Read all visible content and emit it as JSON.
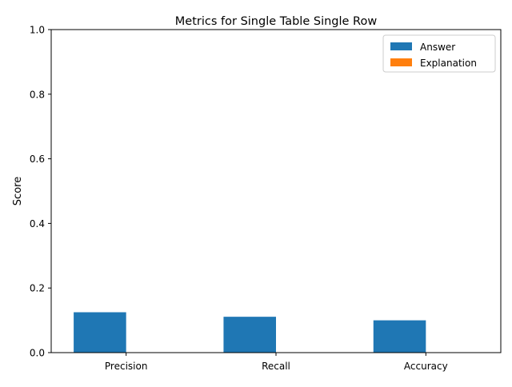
{
  "chart_data": {
    "type": "bar",
    "title": "Metrics for Single Table Single Row",
    "xlabel": "",
    "ylabel": "Score",
    "categories": [
      "Precision",
      "Recall",
      "Accuracy"
    ],
    "series": [
      {
        "name": "Answer",
        "values": [
          0.125,
          0.111,
          0.1
        ],
        "color": "#1f77b4"
      },
      {
        "name": "Explanation",
        "values": [
          0.0,
          0.0,
          0.0
        ],
        "color": "#ff7f0e"
      }
    ],
    "ylim": [
      0,
      1.0
    ],
    "yticks": [
      "0.0",
      "0.2",
      "0.4",
      "0.6",
      "0.8",
      "1.0"
    ],
    "grid": false,
    "legend_position": "top-right"
  }
}
